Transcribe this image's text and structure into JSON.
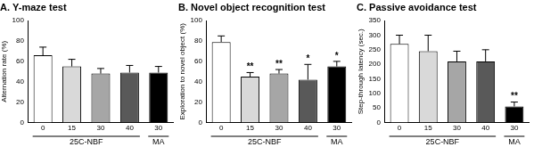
{
  "chart_data": [
    {
      "type": "bar",
      "title": "A. Y-maze test",
      "y_label": "Alternation rate (%)",
      "categories": [
        "0",
        "15",
        "30",
        "40",
        "30"
      ],
      "group_labels": [
        "25C-NBF",
        "25C-NBF",
        "25C-NBF",
        "25C-NBF",
        "MA"
      ],
      "values": [
        66,
        55,
        48,
        49,
        49
      ],
      "errors": [
        8,
        7,
        5,
        7,
        6
      ],
      "annotations": [
        null,
        null,
        null,
        null,
        null
      ],
      "colors": [
        "#ffffff",
        "#d9d9d9",
        "#a6a6a6",
        "#595959",
        "#000000"
      ],
      "ylim": [
        0,
        100
      ],
      "yticks": [
        0,
        20,
        40,
        60,
        80,
        100
      ],
      "grid": false
    },
    {
      "type": "bar",
      "title": "B. Novel object recognition test",
      "y_label": "Exploration to novel object (%)",
      "categories": [
        "0",
        "15",
        "30",
        "40",
        "30"
      ],
      "group_labels": [
        "25C-NBF",
        "25C-NBF",
        "25C-NBF",
        "25C-NBF",
        "MA"
      ],
      "values": [
        79,
        45,
        48,
        42,
        55
      ],
      "errors": [
        6,
        4,
        4,
        15,
        5
      ],
      "annotations": [
        null,
        "**",
        "**",
        "*",
        "*"
      ],
      "colors": [
        "#ffffff",
        "#d9d9d9",
        "#a6a6a6",
        "#595959",
        "#000000"
      ],
      "ylim": [
        0,
        100
      ],
      "yticks": [
        0,
        20,
        40,
        60,
        80,
        100
      ],
      "grid": false
    },
    {
      "type": "bar",
      "title": "C. Passive avoidance test",
      "y_label": "Step-through latency (sec.)",
      "categories": [
        "0",
        "15",
        "30",
        "40",
        "30"
      ],
      "group_labels": [
        "25C-NBF",
        "25C-NBF",
        "25C-NBF",
        "25C-NBF",
        "MA"
      ],
      "values": [
        270,
        245,
        210,
        210,
        55
      ],
      "errors": [
        30,
        55,
        35,
        40,
        15
      ],
      "annotations": [
        null,
        null,
        null,
        null,
        "**"
      ],
      "colors": [
        "#ffffff",
        "#d9d9d9",
        "#a6a6a6",
        "#595959",
        "#000000"
      ],
      "ylim": [
        0,
        350
      ],
      "yticks": [
        0,
        50,
        100,
        150,
        200,
        250,
        300,
        350
      ],
      "grid": false
    }
  ]
}
